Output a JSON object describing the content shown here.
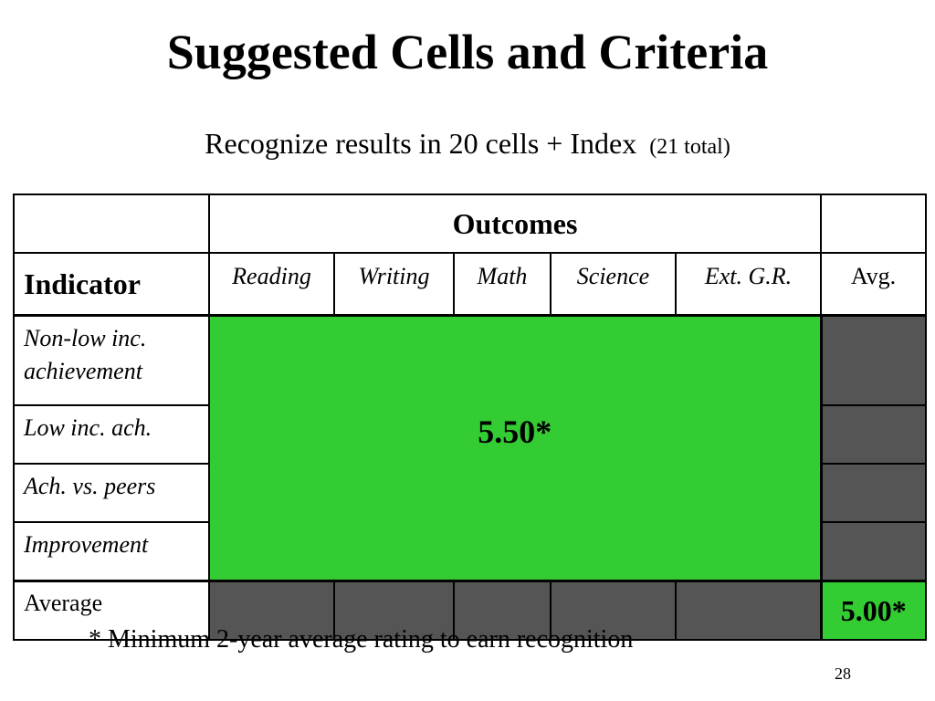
{
  "slide": {
    "title": "Suggested Cells and Criteria",
    "subtitle_main": "Recognize results in 20 cells + Index",
    "subtitle_note": "(21 total)",
    "footnote": "* Minimum 2-year average rating to earn recognition",
    "page_number": "28"
  },
  "table": {
    "outcomes_label": "Outcomes",
    "indicator_label": "Indicator",
    "columns": [
      "Reading",
      "Writing",
      "Math",
      "Science",
      "Ext. G.R."
    ],
    "avg_column_label": "Avg.",
    "rows": [
      "Non-low inc. achievement",
      "Low inc. ach.",
      "Ach. vs. peers",
      "Improvement"
    ],
    "average_row_label": "Average",
    "cells_value": "5.50*",
    "index_value": "5.00*"
  },
  "colors": {
    "highlight_green": "#33cc33",
    "shaded_gray": "#555555"
  }
}
